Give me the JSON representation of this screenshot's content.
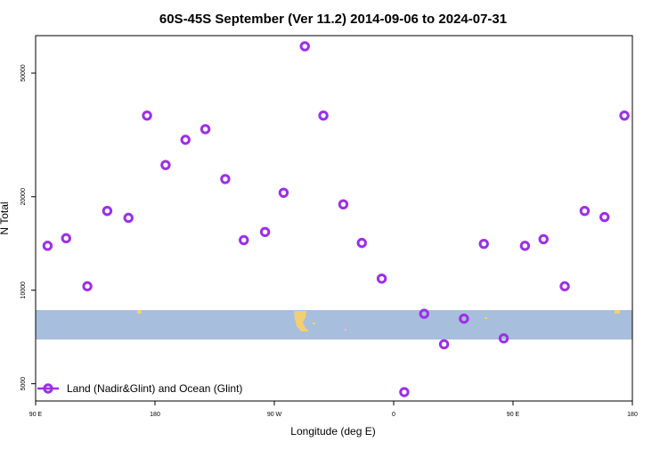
{
  "chart_data": {
    "type": "scatter",
    "title": "60S-45S September (Ver 11.2)   2014-09-06 to 2024-07-31",
    "xlabel": "Longitude (deg E)",
    "ylabel": "N Total",
    "x_axis": {
      "ticks": [
        {
          "label": "90 E",
          "position": 90
        },
        {
          "label": "180",
          "position": 180
        },
        {
          "label": "90 W",
          "position": 270
        },
        {
          "label": "0",
          "position": 360
        },
        {
          "label": "90 E",
          "position": 450
        },
        {
          "label": "180",
          "position": 540
        }
      ],
      "range": [
        90,
        540
      ]
    },
    "y_axis": {
      "scale": "log",
      "ticks": [
        5000,
        10000,
        20000,
        50000
      ],
      "tick_labels": [
        "5000",
        "10000",
        "20000",
        "50000"
      ],
      "range": [
        4400,
        66000
      ]
    },
    "grid": false,
    "legend_placement": "bottom-left",
    "colors": {
      "series": "#9b30e6",
      "band": "#a8bedd",
      "land": "#f2cf73"
    },
    "series": [
      {
        "name": "Land (Nadir&Glint) and Ocean (Glint)",
        "marker": "open-circle",
        "x": [
          99,
          113,
          129,
          144,
          160,
          174,
          188,
          203,
          218,
          233,
          247,
          263,
          277,
          293,
          307,
          322,
          336,
          351,
          368,
          383,
          398,
          413,
          428,
          443,
          459,
          473,
          489,
          504,
          519,
          534
        ],
        "y": [
          13900,
          14700,
          10300,
          18000,
          17100,
          36500,
          25300,
          30500,
          33000,
          22800,
          14500,
          15400,
          20600,
          61000,
          36500,
          18900,
          14200,
          10900,
          4700,
          8400,
          6700,
          8100,
          14100,
          7000,
          13900,
          14600,
          10300,
          18000,
          17200,
          36500
        ]
      }
    ]
  }
}
